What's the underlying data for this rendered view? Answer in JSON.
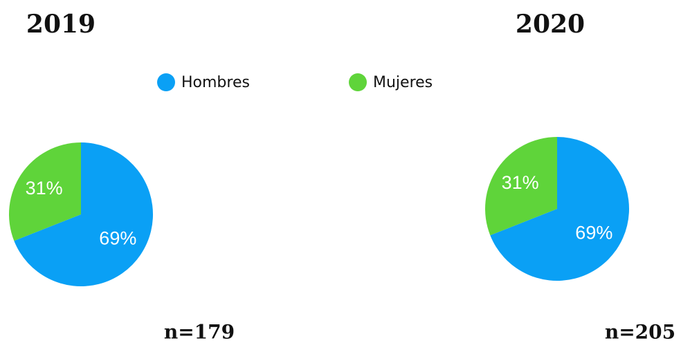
{
  "legend": {
    "labels": [
      "Hombres",
      "Mujeres"
    ],
    "colors": [
      "#0aa0f5",
      "#5fd43a"
    ]
  },
  "chart_data": [
    {
      "type": "pie",
      "title": "2019",
      "values": [
        69,
        31
      ],
      "value_labels": [
        "69%",
        "31%"
      ],
      "note": "n=179"
    },
    {
      "type": "pie",
      "title": "2020",
      "values": [
        69,
        31
      ],
      "value_labels": [
        "69%",
        "31%"
      ],
      "note": "n=205"
    }
  ]
}
